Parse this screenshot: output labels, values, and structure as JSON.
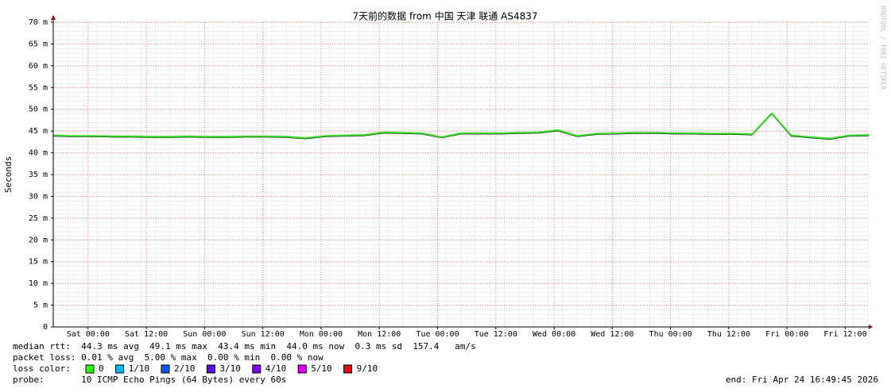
{
  "chart_data": {
    "type": "line",
    "title": "7天前的数据 from 中国 天津 联通 AS4837",
    "y_label": "Seconds",
    "watermark": "RRDTOOL / TOBI OETIKER",
    "xlim": [
      0,
      168
    ],
    "xticks": [
      {
        "value": 7.17,
        "label": "Sat 00:00"
      },
      {
        "value": 19.17,
        "label": "Sat 12:00"
      },
      {
        "value": 31.17,
        "label": "Sun 00:00"
      },
      {
        "value": 43.17,
        "label": "Sun 12:00"
      },
      {
        "value": 55.17,
        "label": "Mon 00:00"
      },
      {
        "value": 67.17,
        "label": "Mon 12:00"
      },
      {
        "value": 79.17,
        "label": "Tue 00:00"
      },
      {
        "value": 91.17,
        "label": "Tue 12:00"
      },
      {
        "value": 103.17,
        "label": "Wed 00:00"
      },
      {
        "value": 115.17,
        "label": "Wed 12:00"
      },
      {
        "value": 127.17,
        "label": "Thu 00:00"
      },
      {
        "value": 139.17,
        "label": "Thu 12:00"
      },
      {
        "value": 151.17,
        "label": "Fri 00:00"
      },
      {
        "value": 163.17,
        "label": "Fri 12:00"
      }
    ],
    "ylim": [
      0,
      70
    ],
    "yticks": [
      0,
      {
        "value": 5,
        "label": "5 m"
      },
      {
        "value": 10,
        "label": "10 m"
      },
      {
        "value": 15,
        "label": "15 m"
      },
      {
        "value": 20,
        "label": "20 m"
      },
      {
        "value": 25,
        "label": "25 m"
      },
      {
        "value": 30,
        "label": "30 m"
      },
      {
        "value": 35,
        "label": "35 m"
      },
      {
        "value": 40,
        "label": "40 m"
      },
      {
        "value": 45,
        "label": "45 m"
      },
      {
        "value": 50,
        "label": "50 m"
      },
      {
        "value": 55,
        "label": "55 m"
      },
      {
        "value": 60,
        "label": "60 m"
      },
      {
        "value": 65,
        "label": "65 m"
      },
      {
        "value": 70,
        "label": "70 m"
      }
    ],
    "grid": true,
    "x": [
      0,
      4,
      8,
      12,
      16,
      20,
      24,
      28,
      32,
      36,
      40,
      44,
      48,
      52,
      56,
      60,
      64,
      68,
      72,
      76,
      80,
      84,
      88,
      92,
      96,
      100,
      104,
      108,
      112,
      116,
      120,
      124,
      128,
      132,
      136,
      140,
      144,
      148,
      152,
      156,
      160,
      164,
      168
    ],
    "series": [
      {
        "color": "#33dd22",
        "values": [
          44.0,
          43.9,
          43.9,
          43.8,
          43.8,
          43.7,
          43.7,
          43.8,
          43.7,
          43.7,
          43.8,
          43.8,
          43.7,
          43.4,
          43.9,
          44.0,
          44.1,
          44.7,
          44.6,
          44.5,
          43.6,
          44.5,
          44.5,
          44.5,
          44.6,
          44.7,
          45.2,
          43.9,
          44.4,
          44.5,
          44.6,
          44.6,
          44.5,
          44.5,
          44.4,
          44.4,
          44.3,
          49.1,
          44.0,
          43.6,
          43.3,
          44.0,
          44.1
        ]
      }
    ],
    "stats": [
      "median rtt:  44.3 ms avg  49.1 ms max  43.4 ms min  44.0 ms now  0.3 ms sd  157.4   am/s",
      "packet loss: 0.01 % avg  5.00 % max  0.00 % min  0.00 % now"
    ],
    "loss_title": "loss color:",
    "loss_colors": [
      {
        "label": "0",
        "color": "#26ff00"
      },
      {
        "label": "1/10",
        "color": "#00b8ff"
      },
      {
        "label": "2/10",
        "color": "#0059ff"
      },
      {
        "label": "3/10",
        "color": "#5e00ff"
      },
      {
        "label": "4/10",
        "color": "#7e00ff"
      },
      {
        "label": "5/10",
        "color": "#dd00ff"
      },
      {
        "label": "9/10",
        "color": "#ff0000"
      }
    ],
    "probe": "probe:       10 ICMP Echo Pings (64 Bytes) every 60s",
    "end": "end: Fri Apr 24 16:49:45 2026"
  }
}
